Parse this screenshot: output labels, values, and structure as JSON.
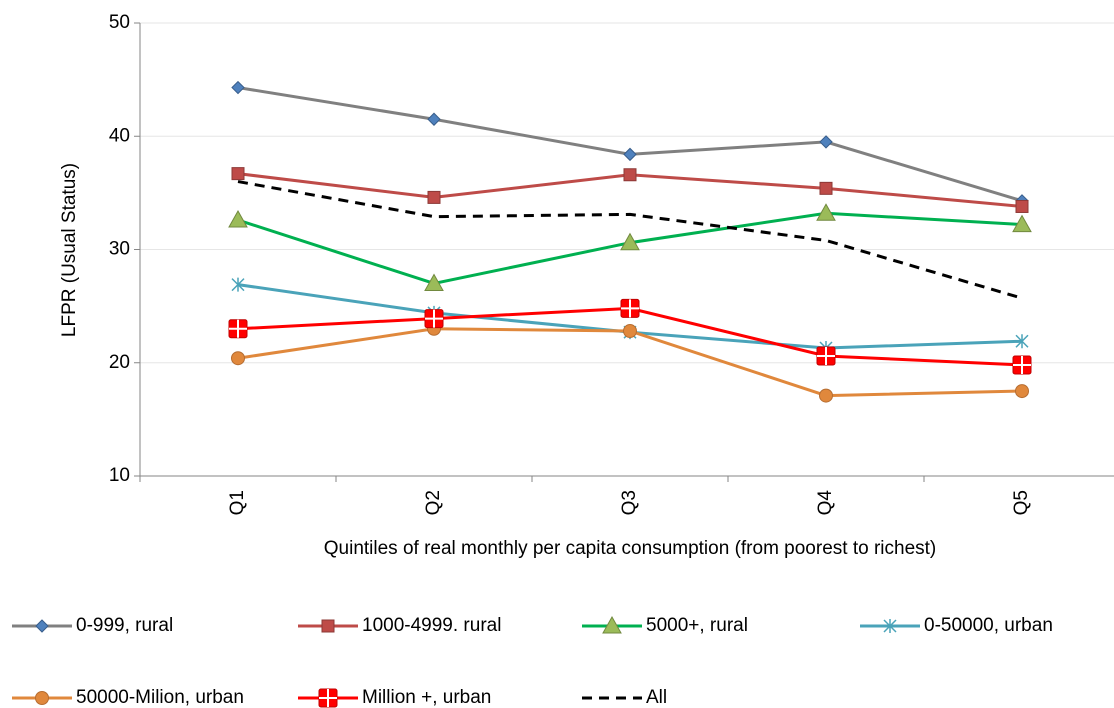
{
  "chart_data": {
    "type": "line",
    "x_label": "Quintiles of real monthly per capita consumption (from poorest to richest)",
    "y_label": "LFPR (Usual Status)",
    "categories": [
      "Q1",
      "Q2",
      "Q3",
      "Q4",
      "Q5"
    ],
    "ylim": [
      10,
      50
    ],
    "yticks": [
      10,
      20,
      30,
      40,
      50
    ],
    "grid": true,
    "series": [
      {
        "name": "0-999, rural",
        "color": "#808080",
        "marker": "diamond",
        "marker_color": "#4f81bd",
        "values": [
          44.3,
          41.5,
          38.4,
          39.5,
          34.3
        ]
      },
      {
        "name": "1000-4999. rural",
        "color": "#be4b48",
        "marker": "square",
        "marker_color": "#be4b48",
        "values": [
          36.7,
          34.6,
          36.6,
          35.4,
          33.8
        ]
      },
      {
        "name": "5000+, rural",
        "color": "#00b050",
        "marker": "triangle",
        "marker_color": "#9bbb59",
        "values": [
          32.6,
          27.0,
          30.6,
          33.2,
          32.2
        ]
      },
      {
        "name": "0-50000, urban",
        "color": "#4aa3b9",
        "marker": "star",
        "marker_color": "#4aa3b9",
        "values": [
          26.9,
          24.4,
          22.7,
          21.3,
          21.9
        ]
      },
      {
        "name": "50000-Milion, urban",
        "color": "#e0883c",
        "marker": "circle",
        "marker_color": "#e0883c",
        "values": [
          20.4,
          23.0,
          22.8,
          17.1,
          17.5
        ]
      },
      {
        "name": "Million +, urban",
        "color": "#ff0000",
        "marker": "cross-square",
        "marker_color": "#ff0000",
        "values": [
          23.0,
          23.9,
          24.8,
          20.6,
          19.8
        ]
      },
      {
        "name": "All",
        "color": "#000000",
        "marker": "none",
        "dash": true,
        "values": [
          36.0,
          32.9,
          33.1,
          30.8,
          25.7
        ]
      }
    ]
  }
}
